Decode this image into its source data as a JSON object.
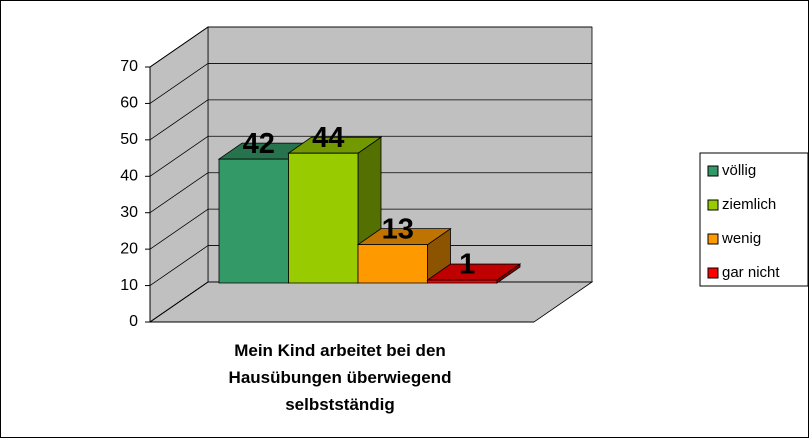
{
  "chart_data": {
    "type": "bar3d",
    "categories": [
      "Mein Kind arbeitet bei den Hausübungen überwiegend selbstständig"
    ],
    "series": [
      {
        "name": "völlig",
        "color": "#339966",
        "values": [
          42
        ]
      },
      {
        "name": "ziemlich",
        "color": "#99cc00",
        "values": [
          44
        ]
      },
      {
        "name": "wenig",
        "color": "#ff9900",
        "values": [
          13
        ]
      },
      {
        "name": "gar nicht",
        "color": "#ff0000",
        "values": [
          1
        ]
      }
    ],
    "ylim": [
      0,
      70
    ],
    "yticks": [
      0,
      10,
      20,
      30,
      40,
      50,
      60,
      70
    ],
    "grid": true,
    "legend": "right"
  }
}
